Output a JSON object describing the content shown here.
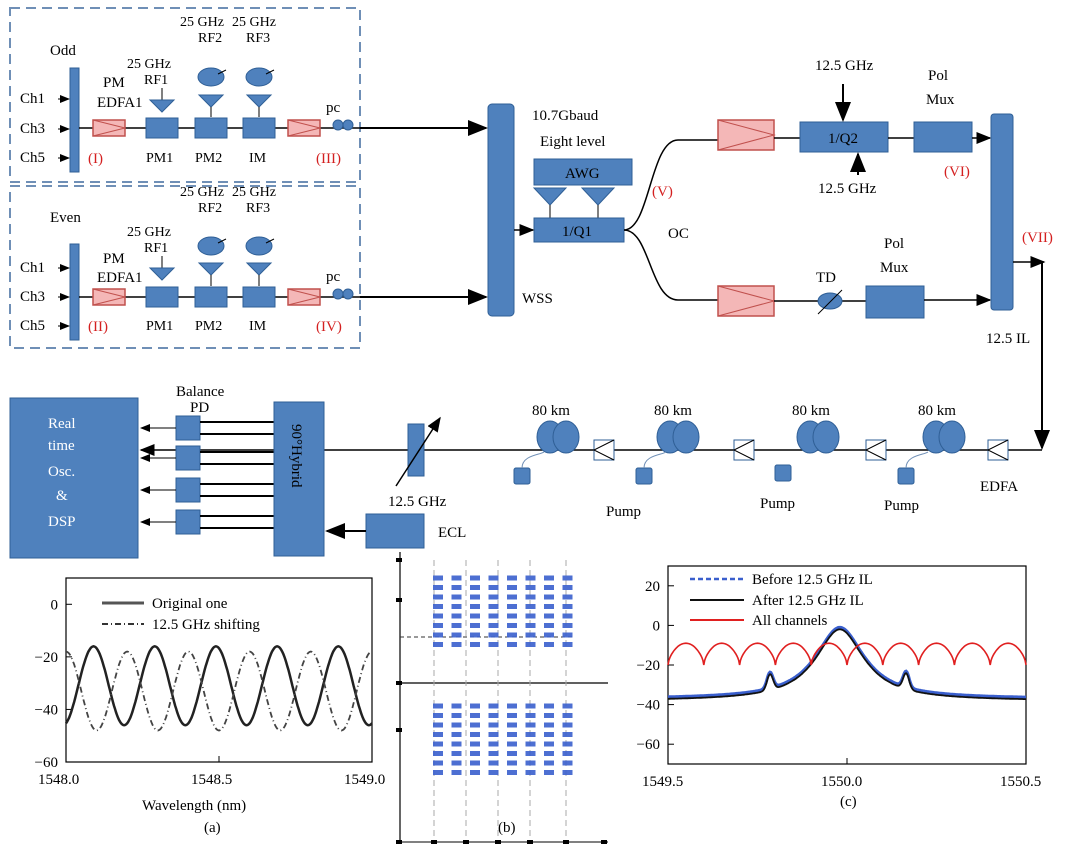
{
  "colors": {
    "block": "#4f81bd",
    "block_stroke": "#2f5f96",
    "edfa_fill": "#f4b7b7",
    "edfa_stroke": "#c0504d",
    "red_label": "#d42020"
  },
  "transmitter": {
    "odd": {
      "title": "Odd",
      "channels": [
        "Ch1",
        "Ch3",
        "Ch5"
      ],
      "pm": "PM",
      "edfa": "EDFA1",
      "rf1": [
        "25 GHz",
        "RF1"
      ],
      "rf2": [
        "25 GHz",
        "RF2"
      ],
      "rf3": [
        "25 GHz",
        "RF3"
      ],
      "mods": [
        "PM1",
        "PM2",
        "IM"
      ],
      "pc": "pc",
      "point_in": "(I)",
      "point_out": "(III)"
    },
    "even": {
      "title": "Even",
      "channels": [
        "Ch1",
        "Ch3",
        "Ch5"
      ],
      "pm": "PM",
      "edfa": "EDFA1",
      "rf1": [
        "25 GHz",
        "RF1"
      ],
      "rf2": [
        "25 GHz",
        "RF2"
      ],
      "rf3": [
        "25 GHz",
        "RF3"
      ],
      "mods": [
        "PM1",
        "PM2",
        "IM"
      ],
      "pc": "pc",
      "point_in": "(II)",
      "point_out": "(IV)"
    },
    "wss": "WSS",
    "awg_top1": "10.7Gbaud",
    "awg_top2": "Eight level",
    "awg": "AWG",
    "iq1": "1/Q1",
    "oc": "OC",
    "pt_v": "(V)",
    "iq2": "1/Q2",
    "iq2_top": "12.5 GHz",
    "iq2_bottom": "12.5 GHz",
    "pol_mux_1": [
      "Pol",
      "Mux"
    ],
    "pt_vi": "(VI)",
    "td": "TD",
    "pol_mux_2": [
      "Pol",
      "Mux"
    ],
    "pt_vii": "(VII)",
    "il": "12.5 IL"
  },
  "link": {
    "spans": [
      "80 km",
      "80 km",
      "80 km",
      "80 km"
    ],
    "pumps": [
      "Pump",
      "Pump",
      "Pump"
    ],
    "edfa": "EDFA",
    "filter": "12.5 GHz",
    "receiver": {
      "balance": [
        "Balance",
        "PD"
      ],
      "hybrid": "90°Hybrid",
      "ecl": "ECL",
      "dsp": [
        "Real",
        "time",
        "Osc.",
        "&",
        "DSP"
      ]
    }
  },
  "chart_data": [
    {
      "type": "line",
      "caption": "(a)",
      "xlabel": "Wavelength (nm)",
      "xlim": [
        1548.0,
        1549.0
      ],
      "ylim": [
        -60,
        10
      ],
      "xticks": [
        "1548.0",
        "1548.5",
        "1549.0"
      ],
      "yticks": [
        "0",
        "−20",
        "−40",
        "−60"
      ],
      "legend": [
        "Original one",
        "12.5 GHz shifting"
      ],
      "series": [
        {
          "name": "Original one",
          "period_nm": 0.2,
          "peak_x": 1548.09,
          "max": -16,
          "min": -46
        },
        {
          "name": "12.5 GHz shifting",
          "period_nm": 0.2,
          "peak_x": 1548.0,
          "max": -18,
          "min": -48
        }
      ]
    },
    {
      "type": "scatter",
      "caption": "(b)",
      "description_constellation": "two 8x8 constellation grids"
    },
    {
      "type": "line",
      "caption": "(c)",
      "xlim": [
        1549.5,
        1550.5
      ],
      "ylim": [
        -70,
        30
      ],
      "xticks": [
        "1549.5",
        "1550.0",
        "1550.5"
      ],
      "yticks": [
        "20",
        "0",
        "−20",
        "−40",
        "−60"
      ],
      "legend": [
        "Before 12.5 GHz IL",
        "After 12.5 GHz IL",
        "All channels"
      ],
      "series": [
        {
          "name": "Before 12.5 GHz IL",
          "color": "#3a5fcd",
          "peak_x": 1549.98,
          "peak_y": -1,
          "floor": -64
        },
        {
          "name": "After 12.5 GHz IL",
          "color": "#111111",
          "peak_x": 1549.98,
          "peak_y": -2,
          "floor": -66
        },
        {
          "name": "All channels",
          "color": "#e02020",
          "period_nm": 0.1,
          "max": -9,
          "min": -20
        }
      ]
    }
  ]
}
